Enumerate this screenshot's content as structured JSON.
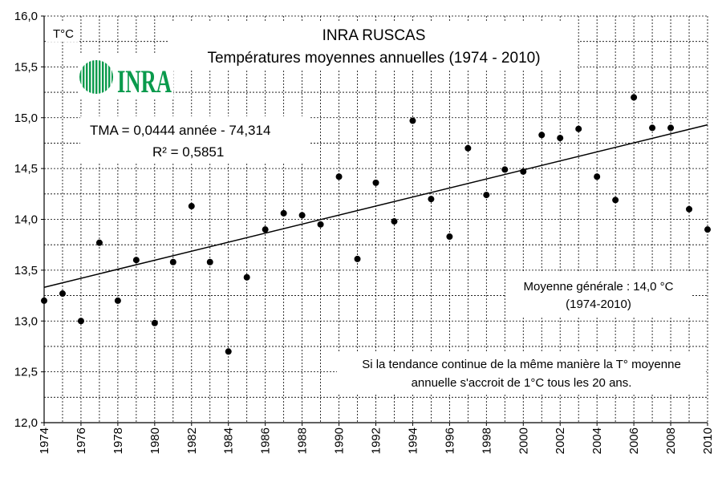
{
  "chart_data": {
    "type": "scatter",
    "title": "INRA RUSCAS",
    "subtitle": "Températures moyennes annuelles (1974 - 2010)",
    "ylabel": "T°C",
    "xlim": [
      1974,
      2010
    ],
    "ylim": [
      12.0,
      16.0
    ],
    "y_ticks": [
      "12,0",
      "12,5",
      "13,0",
      "13,5",
      "14,0",
      "14,5",
      "15,0",
      "15,5",
      "16,0"
    ],
    "x_ticks": [
      "1974",
      "1976",
      "1978",
      "1980",
      "1982",
      "1984",
      "1986",
      "1988",
      "1990",
      "1992",
      "1994",
      "1996",
      "1998",
      "2000",
      "2002",
      "2004",
      "2006",
      "2008",
      "2010"
    ],
    "grid": true,
    "x": [
      1974,
      1975,
      1976,
      1977,
      1978,
      1979,
      1980,
      1981,
      1982,
      1983,
      1984,
      1985,
      1986,
      1987,
      1988,
      1989,
      1990,
      1991,
      1992,
      1993,
      1994,
      1995,
      1996,
      1997,
      1998,
      1999,
      2000,
      2001,
      2002,
      2003,
      2004,
      2005,
      2006,
      2007,
      2008,
      2009,
      2010
    ],
    "y": [
      13.2,
      13.27,
      13.0,
      13.77,
      13.2,
      13.6,
      12.98,
      13.58,
      14.13,
      13.58,
      12.7,
      13.43,
      13.9,
      14.06,
      14.04,
      13.95,
      14.42,
      13.61,
      14.36,
      13.98,
      14.97,
      14.2,
      13.83,
      14.7,
      14.24,
      14.49,
      14.47,
      14.83,
      14.8,
      14.89,
      14.42,
      14.19,
      15.2,
      14.9,
      14.9,
      14.1,
      13.9
    ],
    "trendline": {
      "slope": 0.0444,
      "intercept": -74.314
    },
    "equation_text": "TMA = 0,0444 année - 74,314",
    "r2_text": "R² = 0,5851",
    "mean_text_line1": "Moyenne générale : 14,0 °C",
    "mean_text_line2": "(1974-2010)",
    "note_line1": "Si la tendance continue de la même manière la T° moyenne",
    "note_line2": "annuelle s'accroit de 1°C tous les 20 ans.",
    "logo_text": "INRA",
    "colors": {
      "logo": "#0a9a4c",
      "points": "#000000",
      "grid_dash": "#000000"
    }
  }
}
